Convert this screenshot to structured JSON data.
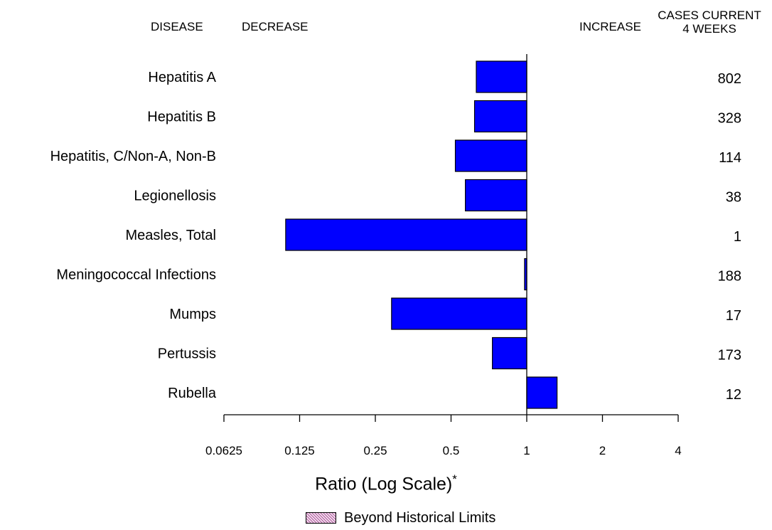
{
  "headers": {
    "disease": "DISEASE",
    "decrease": "DECREASE",
    "increase": "INCREASE",
    "cases_line1": "CASES CURRENT",
    "cases_line2": "4 WEEKS"
  },
  "legend": {
    "label": "Beyond Historical Limits",
    "swatch_fill": "#f5dff0",
    "swatch_hatch": "#9a3a86"
  },
  "colors": {
    "bar": "#0000ff",
    "axis": "#000000"
  },
  "chart_data": {
    "type": "bar",
    "orientation": "horizontal",
    "xlabel": "Ratio (Log Scale)",
    "xlabel_marker": "*",
    "x_scale": "log2",
    "xlim": [
      0.0625,
      4
    ],
    "baseline": 1,
    "xticks": [
      0.0625,
      0.125,
      0.25,
      0.5,
      1,
      2,
      4
    ],
    "xtick_labels": [
      "0.0625",
      "0.125",
      "0.25",
      "0.5",
      "1",
      "2",
      "4"
    ],
    "categories": [
      "Hepatitis A",
      "Hepatitis B",
      "Hepatitis, C/Non-A, Non-B",
      "Legionellosis",
      "Measles, Total",
      "Meningococcal Infections",
      "Mumps",
      "Pertussis",
      "Rubella"
    ],
    "values": [
      0.63,
      0.62,
      0.52,
      0.57,
      0.11,
      0.98,
      0.29,
      0.73,
      1.32
    ],
    "cases_current_4_weeks": [
      "802",
      "328",
      "114",
      "38",
      "1",
      "188",
      "17",
      "173",
      "12"
    ]
  }
}
